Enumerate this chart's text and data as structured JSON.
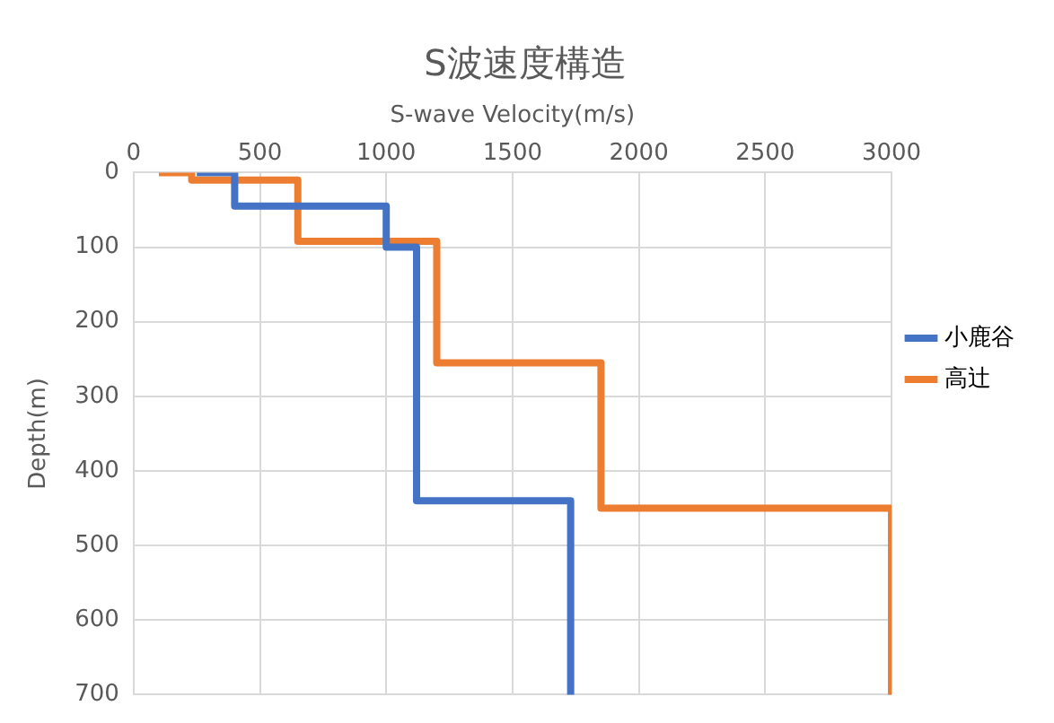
{
  "chart_data": {
    "type": "line",
    "title": "S波速度構造",
    "xlabel": "S-wave Velocity(m/s)",
    "ylabel": "Depth(m)",
    "xlim": [
      0,
      3000
    ],
    "xticks": [
      0,
      500,
      1000,
      1500,
      2000,
      2500,
      3000
    ],
    "ylim": [
      700,
      0
    ],
    "yticks": [
      0,
      100,
      200,
      300,
      400,
      500,
      600,
      700
    ],
    "grid": true,
    "legend": "right",
    "marker": "none",
    "line_style": "solid",
    "series": [
      {
        "name": "小鹿谷",
        "color": "#4472c4",
        "x": [
          250,
          400,
          400,
          1000,
          1000,
          1120,
          1120,
          1730,
          1730
        ],
        "values": [
          0,
          0,
          45,
          45,
          100,
          100,
          440,
          440,
          700
        ]
      },
      {
        "name": "高辻",
        "color": "#ed7d31",
        "x": [
          100,
          230,
          230,
          650,
          650,
          1200,
          1200,
          1850,
          1850,
          3000,
          3000
        ],
        "values": [
          0,
          0,
          10,
          10,
          92,
          92,
          255,
          255,
          450,
          450,
          700
        ]
      }
    ]
  }
}
